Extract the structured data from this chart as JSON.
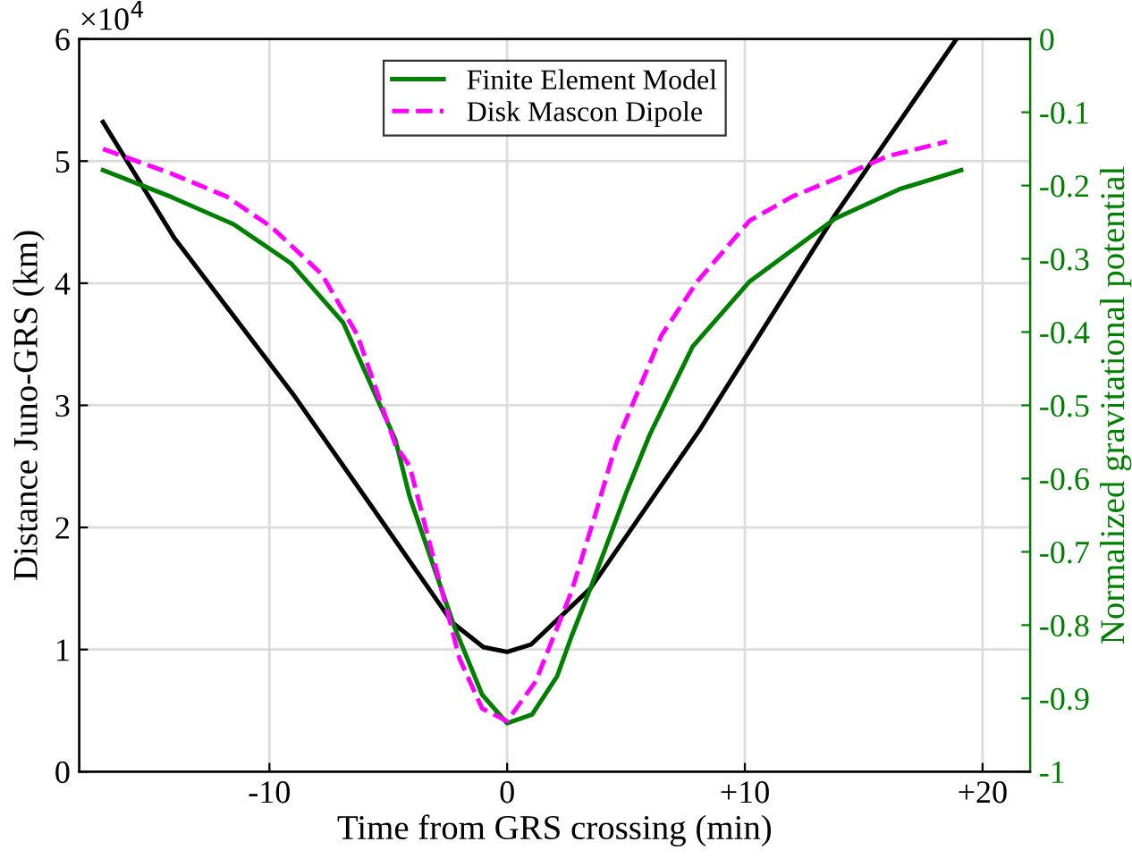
{
  "chart_data": {
    "type": "line",
    "xlabel": "Time from GRS crossing (min)",
    "ylabel": "Distance Juno-GRS (km)",
    "y2label": "Normalized gravitational potential",
    "xlim": [
      -18,
      22
    ],
    "xticks": [
      {
        "value": -10,
        "label": "-10"
      },
      0,
      {
        "value": 10,
        "label": "+10"
      },
      {
        "value": 20,
        "label": "+20"
      }
    ],
    "ylim": [
      0,
      6
    ],
    "yticks": [
      0,
      1,
      2,
      3,
      4,
      5,
      6
    ],
    "y2lim": [
      -1,
      0
    ],
    "y2ticks": [
      {
        "value": -1,
        "label": "-1"
      },
      {
        "value": -0.9,
        "label": "-0.9"
      },
      {
        "value": -0.8,
        "label": "-0.8"
      },
      {
        "value": -0.7,
        "label": "-0.7"
      },
      {
        "value": -0.6,
        "label": "-0.6"
      },
      {
        "value": -0.5,
        "label": "-0.5"
      },
      {
        "value": -0.4,
        "label": "-0.4"
      },
      {
        "value": -0.3,
        "label": "-0.3"
      },
      {
        "value": -0.2,
        "label": "-0.2"
      },
      {
        "value": -0.1,
        "label": "-0.1"
      },
      0
    ],
    "annotations": [
      "×10$^{4}$"
    ],
    "grid": true,
    "legend": "top",
    "marker": "none",
    "series": [
      {
        "color": "#000000",
        "line_style": "solid",
        "x": [
          -17,
          -14,
          -9,
          -5.8,
          -2.3,
          -1,
          0,
          1,
          3.5,
          8.1,
          13.8,
          18.9
        ],
        "values": [
          5.32,
          4.37,
          3.09,
          2.2,
          1.22,
          1.02,
          0.98,
          1.04,
          1.5,
          2.8,
          4.56,
          6.0
        ]
      },
      {
        "name": "Finite Element Model",
        "color": "#008000",
        "axis": "y2",
        "line_style": "solid",
        "x": [
          -17,
          -14.1,
          -11.5,
          -9.1,
          -6.9,
          -4.7,
          -4.1,
          -2.2,
          -1.05,
          0,
          1.05,
          2.1,
          2.7,
          3.5,
          5,
          6,
          7.8,
          10.2,
          13.8,
          16.5,
          19.1
        ],
        "values": [
          -0.179,
          -0.216,
          -0.253,
          -0.306,
          -0.387,
          -0.547,
          -0.625,
          -0.804,
          -0.895,
          -0.934,
          -0.922,
          -0.87,
          -0.816,
          -0.75,
          -0.62,
          -0.54,
          -0.42,
          -0.331,
          -0.245,
          -0.205,
          -0.179
        ]
      },
      {
        "name": "Disk Mascon Dipole",
        "color": "#ff00ff",
        "axis": "y2",
        "line_style": "dashed",
        "x": [
          -17,
          -14.1,
          -11.8,
          -9.9,
          -7.8,
          -6.3,
          -4.7,
          -4.1,
          -2,
          -1.05,
          0,
          1.2,
          2.7,
          3.7,
          4.6,
          6.5,
          8,
          10.2,
          12,
          13.8,
          16,
          18.5
        ],
        "values": [
          -0.15,
          -0.184,
          -0.215,
          -0.257,
          -0.321,
          -0.404,
          -0.554,
          -0.583,
          -0.846,
          -0.914,
          -0.931,
          -0.877,
          -0.755,
          -0.65,
          -0.551,
          -0.404,
          -0.331,
          -0.248,
          -0.215,
          -0.191,
          -0.16,
          -0.14
        ]
      }
    ]
  }
}
